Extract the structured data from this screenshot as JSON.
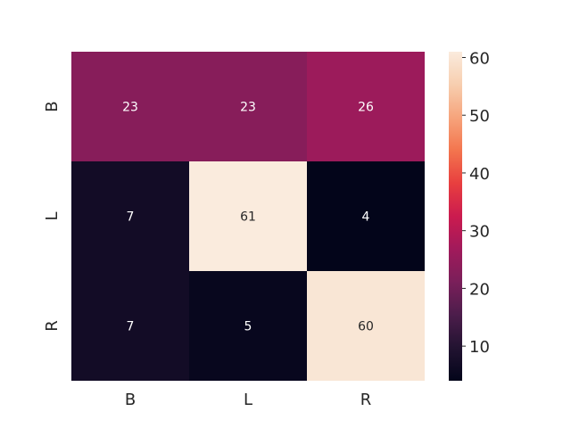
{
  "chart_data": {
    "type": "heatmap",
    "title": "",
    "xlabel": "",
    "ylabel": "",
    "x_categories": [
      "B",
      "L",
      "R"
    ],
    "y_categories": [
      "B",
      "L",
      "R"
    ],
    "values": [
      [
        23,
        23,
        26
      ],
      [
        7,
        61,
        4
      ],
      [
        7,
        5,
        60
      ]
    ],
    "annotations": [
      [
        "23",
        "23",
        "26"
      ],
      [
        "7",
        "61",
        "4"
      ],
      [
        "7",
        "5",
        "60"
      ]
    ],
    "colorbar": {
      "min": 4,
      "max": 61,
      "ticks": [
        10,
        20,
        30,
        40,
        50,
        60
      ],
      "tick_labels": [
        "10",
        "20",
        "30",
        "40",
        "50",
        "60"
      ],
      "colormap": "rocket",
      "stops": [
        "#03051a",
        "#221331",
        "#4c1d4b",
        "#7a1f5a",
        "#a11a5b",
        "#cb1b4f",
        "#e83f3f",
        "#f3754e",
        "#f6a47c",
        "#f7ceaf",
        "#faebdd"
      ]
    }
  }
}
